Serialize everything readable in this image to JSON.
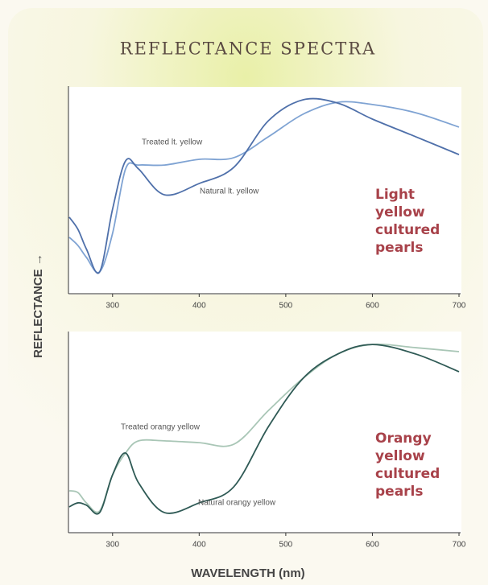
{
  "title": "REFLECTANCE SPECTRA",
  "xlabel": "WAVELENGTH (nm)",
  "ylabel": "REFLECTANCE →",
  "chart_data": [
    {
      "type": "line",
      "xlim": [
        250,
        700
      ],
      "xticks": [
        300,
        400,
        500,
        600,
        700
      ],
      "ylim": [
        0,
        100
      ],
      "x": [
        250,
        260,
        270,
        285,
        300,
        315,
        330,
        360,
        400,
        440,
        480,
        520,
        560,
        600,
        650,
        700
      ],
      "series": [
        {
          "name": "Treated lt. yellow",
          "color": "#7fa3d3",
          "values": [
            27.5,
            23.5,
            17.6,
            10.6,
            29.4,
            60.8,
            62.7,
            62.7,
            65.5,
            66.3,
            76.5,
            87.5,
            93.3,
            92.2,
            88.2,
            81.2
          ]
        },
        {
          "name": "Natural lt. yellow",
          "color": "#4f70aa",
          "values": [
            37.3,
            31.4,
            21.6,
            10.6,
            41.2,
            64.7,
            60.8,
            48.2,
            53.7,
            61.6,
            84.3,
            94.5,
            92.9,
            85.1,
            76.5,
            67.8
          ]
        }
      ],
      "side_label": [
        "Light",
        "yellow",
        "cultured",
        "pearls"
      ]
    },
    {
      "type": "line",
      "xlim": [
        250,
        700
      ],
      "xticks": [
        300,
        400,
        500,
        600,
        700
      ],
      "ylim": [
        0,
        100
      ],
      "x": [
        250,
        260,
        270,
        285,
        300,
        315,
        330,
        360,
        400,
        440,
        480,
        520,
        560,
        600,
        650,
        700
      ],
      "series": [
        {
          "name": "Treated orangy yellow",
          "color": "#a9c6b6",
          "values": [
            21.1,
            20.2,
            14.9,
            10.9,
            29.1,
            40.1,
            46.2,
            46.2,
            45.3,
            44.5,
            61.5,
            77.7,
            89.9,
            94.7,
            93.1,
            91.1
          ]
        },
        {
          "name": "Natural orangy yellow",
          "color": "#2f5a55",
          "values": [
            13.0,
            15.0,
            13.8,
            10.1,
            29.1,
            40.1,
            25.1,
            10.1,
            15.0,
            23.1,
            53.4,
            77.7,
            89.9,
            94.7,
            89.9,
            81.0
          ]
        }
      ],
      "side_label": [
        "Orangy",
        "yellow",
        "cultured",
        "pearls"
      ]
    }
  ]
}
